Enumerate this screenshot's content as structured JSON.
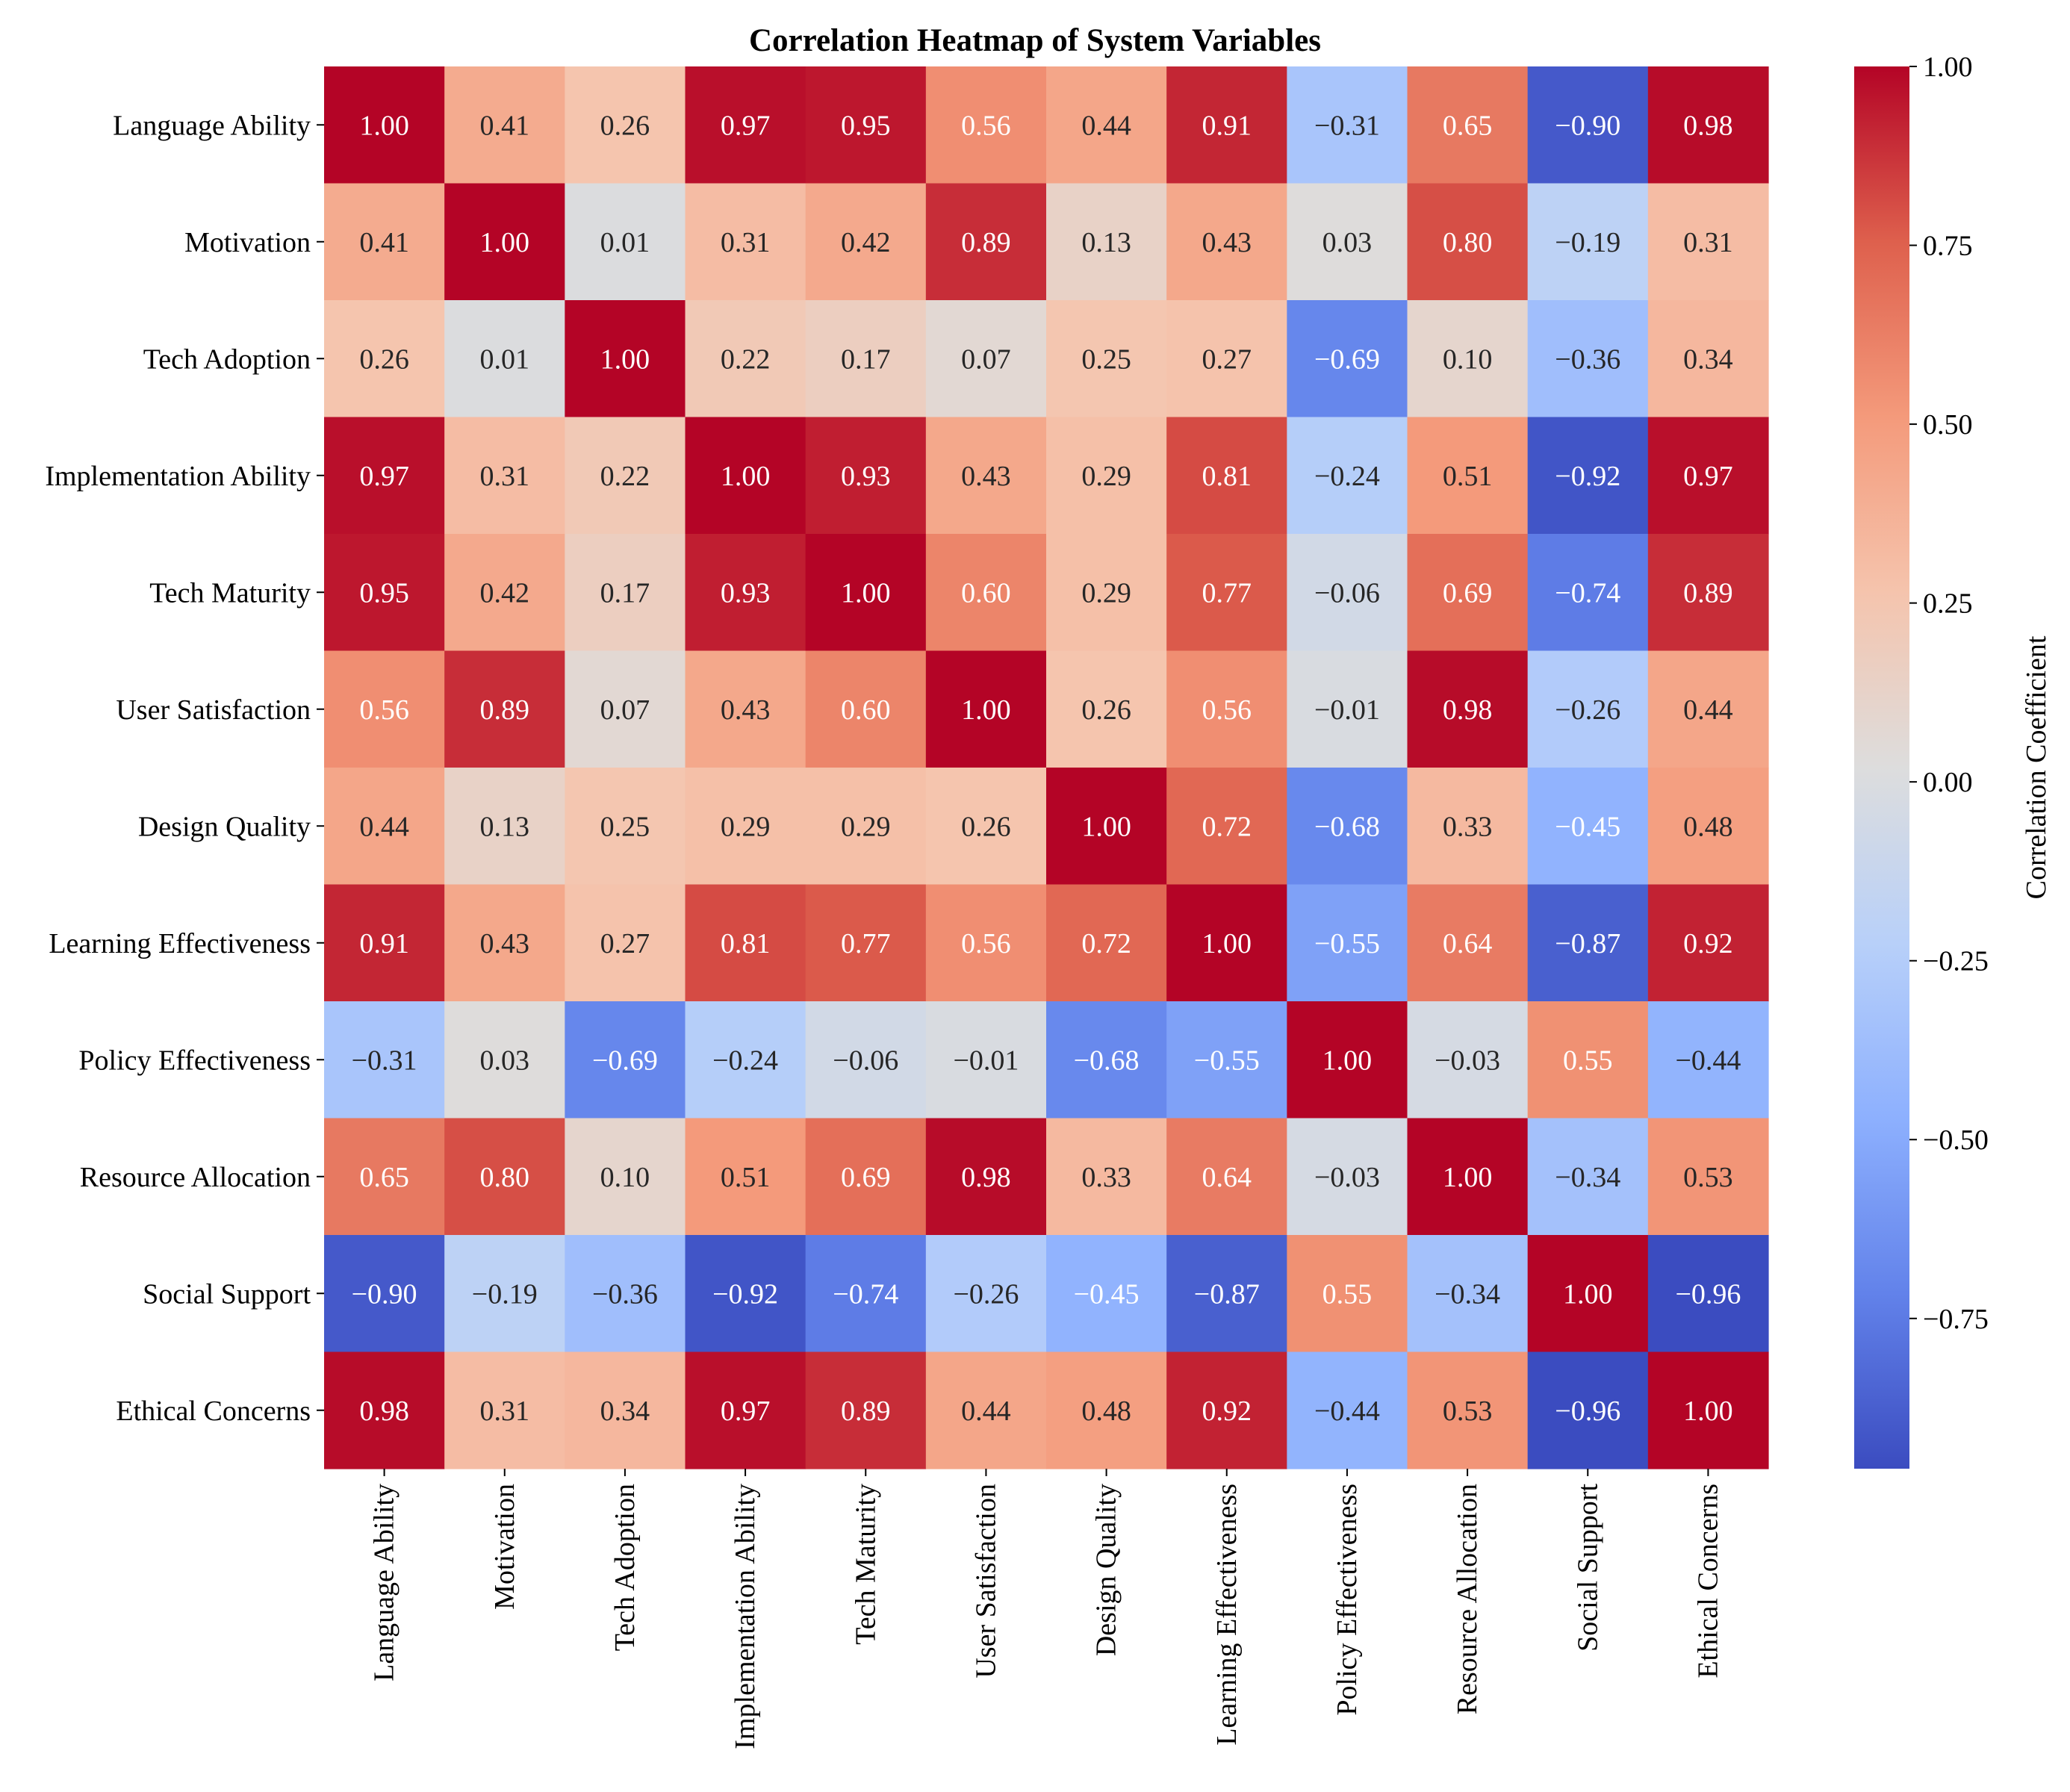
{
  "chart_data": {
    "type": "heatmap",
    "title": "Correlation Heatmap of System Variables",
    "variables": [
      "Language Ability",
      "Motivation",
      "Tech Adoption",
      "Implementation Ability",
      "Tech Maturity",
      "User Satisfaction",
      "Design Quality",
      "Learning Effectiveness",
      "Policy Effectiveness",
      "Resource Allocation",
      "Social Support",
      "Ethical Concerns"
    ],
    "matrix": [
      [
        1.0,
        0.41,
        0.26,
        0.97,
        0.95,
        0.56,
        0.44,
        0.91,
        -0.31,
        0.65,
        -0.9,
        0.98
      ],
      [
        0.41,
        1.0,
        0.01,
        0.31,
        0.42,
        0.89,
        0.13,
        0.43,
        0.03,
        0.8,
        -0.19,
        0.31
      ],
      [
        0.26,
        0.01,
        1.0,
        0.22,
        0.17,
        0.07,
        0.25,
        0.27,
        -0.69,
        0.1,
        -0.36,
        0.34
      ],
      [
        0.97,
        0.31,
        0.22,
        1.0,
        0.93,
        0.43,
        0.29,
        0.81,
        -0.24,
        0.51,
        -0.92,
        0.97
      ],
      [
        0.95,
        0.42,
        0.17,
        0.93,
        1.0,
        0.6,
        0.29,
        0.77,
        -0.06,
        0.69,
        -0.74,
        0.89
      ],
      [
        0.56,
        0.89,
        0.07,
        0.43,
        0.6,
        1.0,
        0.26,
        0.56,
        -0.01,
        0.98,
        -0.26,
        0.44
      ],
      [
        0.44,
        0.13,
        0.25,
        0.29,
        0.29,
        0.26,
        1.0,
        0.72,
        -0.68,
        0.33,
        -0.45,
        0.48
      ],
      [
        0.91,
        0.43,
        0.27,
        0.81,
        0.77,
        0.56,
        0.72,
        1.0,
        -0.55,
        0.64,
        -0.87,
        0.92
      ],
      [
        -0.31,
        0.03,
        -0.69,
        -0.24,
        -0.06,
        -0.01,
        -0.68,
        -0.55,
        1.0,
        -0.03,
        0.55,
        -0.44
      ],
      [
        0.65,
        0.8,
        0.1,
        0.51,
        0.69,
        0.98,
        0.33,
        0.64,
        -0.03,
        1.0,
        -0.34,
        0.53
      ],
      [
        -0.9,
        -0.19,
        -0.36,
        -0.92,
        -0.74,
        -0.26,
        -0.45,
        -0.87,
        0.55,
        -0.34,
        1.0,
        -0.96
      ],
      [
        0.98,
        0.31,
        0.34,
        0.97,
        0.89,
        0.44,
        0.48,
        0.92,
        -0.44,
        0.53,
        -0.96,
        1.0
      ]
    ],
    "value_format": "2 decimals",
    "colormap": "coolwarm",
    "colorbar": {
      "label": "Correlation Coefficient",
      "vmin": -0.96,
      "vmax": 1.0,
      "ticks": [
        1.0,
        0.75,
        0.5,
        0.25,
        0.0,
        -0.25,
        -0.5,
        -0.75
      ],
      "tick_labels": [
        "1.00",
        "0.75",
        "0.50",
        "0.25",
        "0.00",
        "−0.25",
        "−0.50",
        "−0.75"
      ]
    }
  },
  "colors": {
    "background": "#ffffff",
    "text_dark": "#262626",
    "text_light": "#ffffff",
    "axis": "#000000"
  }
}
